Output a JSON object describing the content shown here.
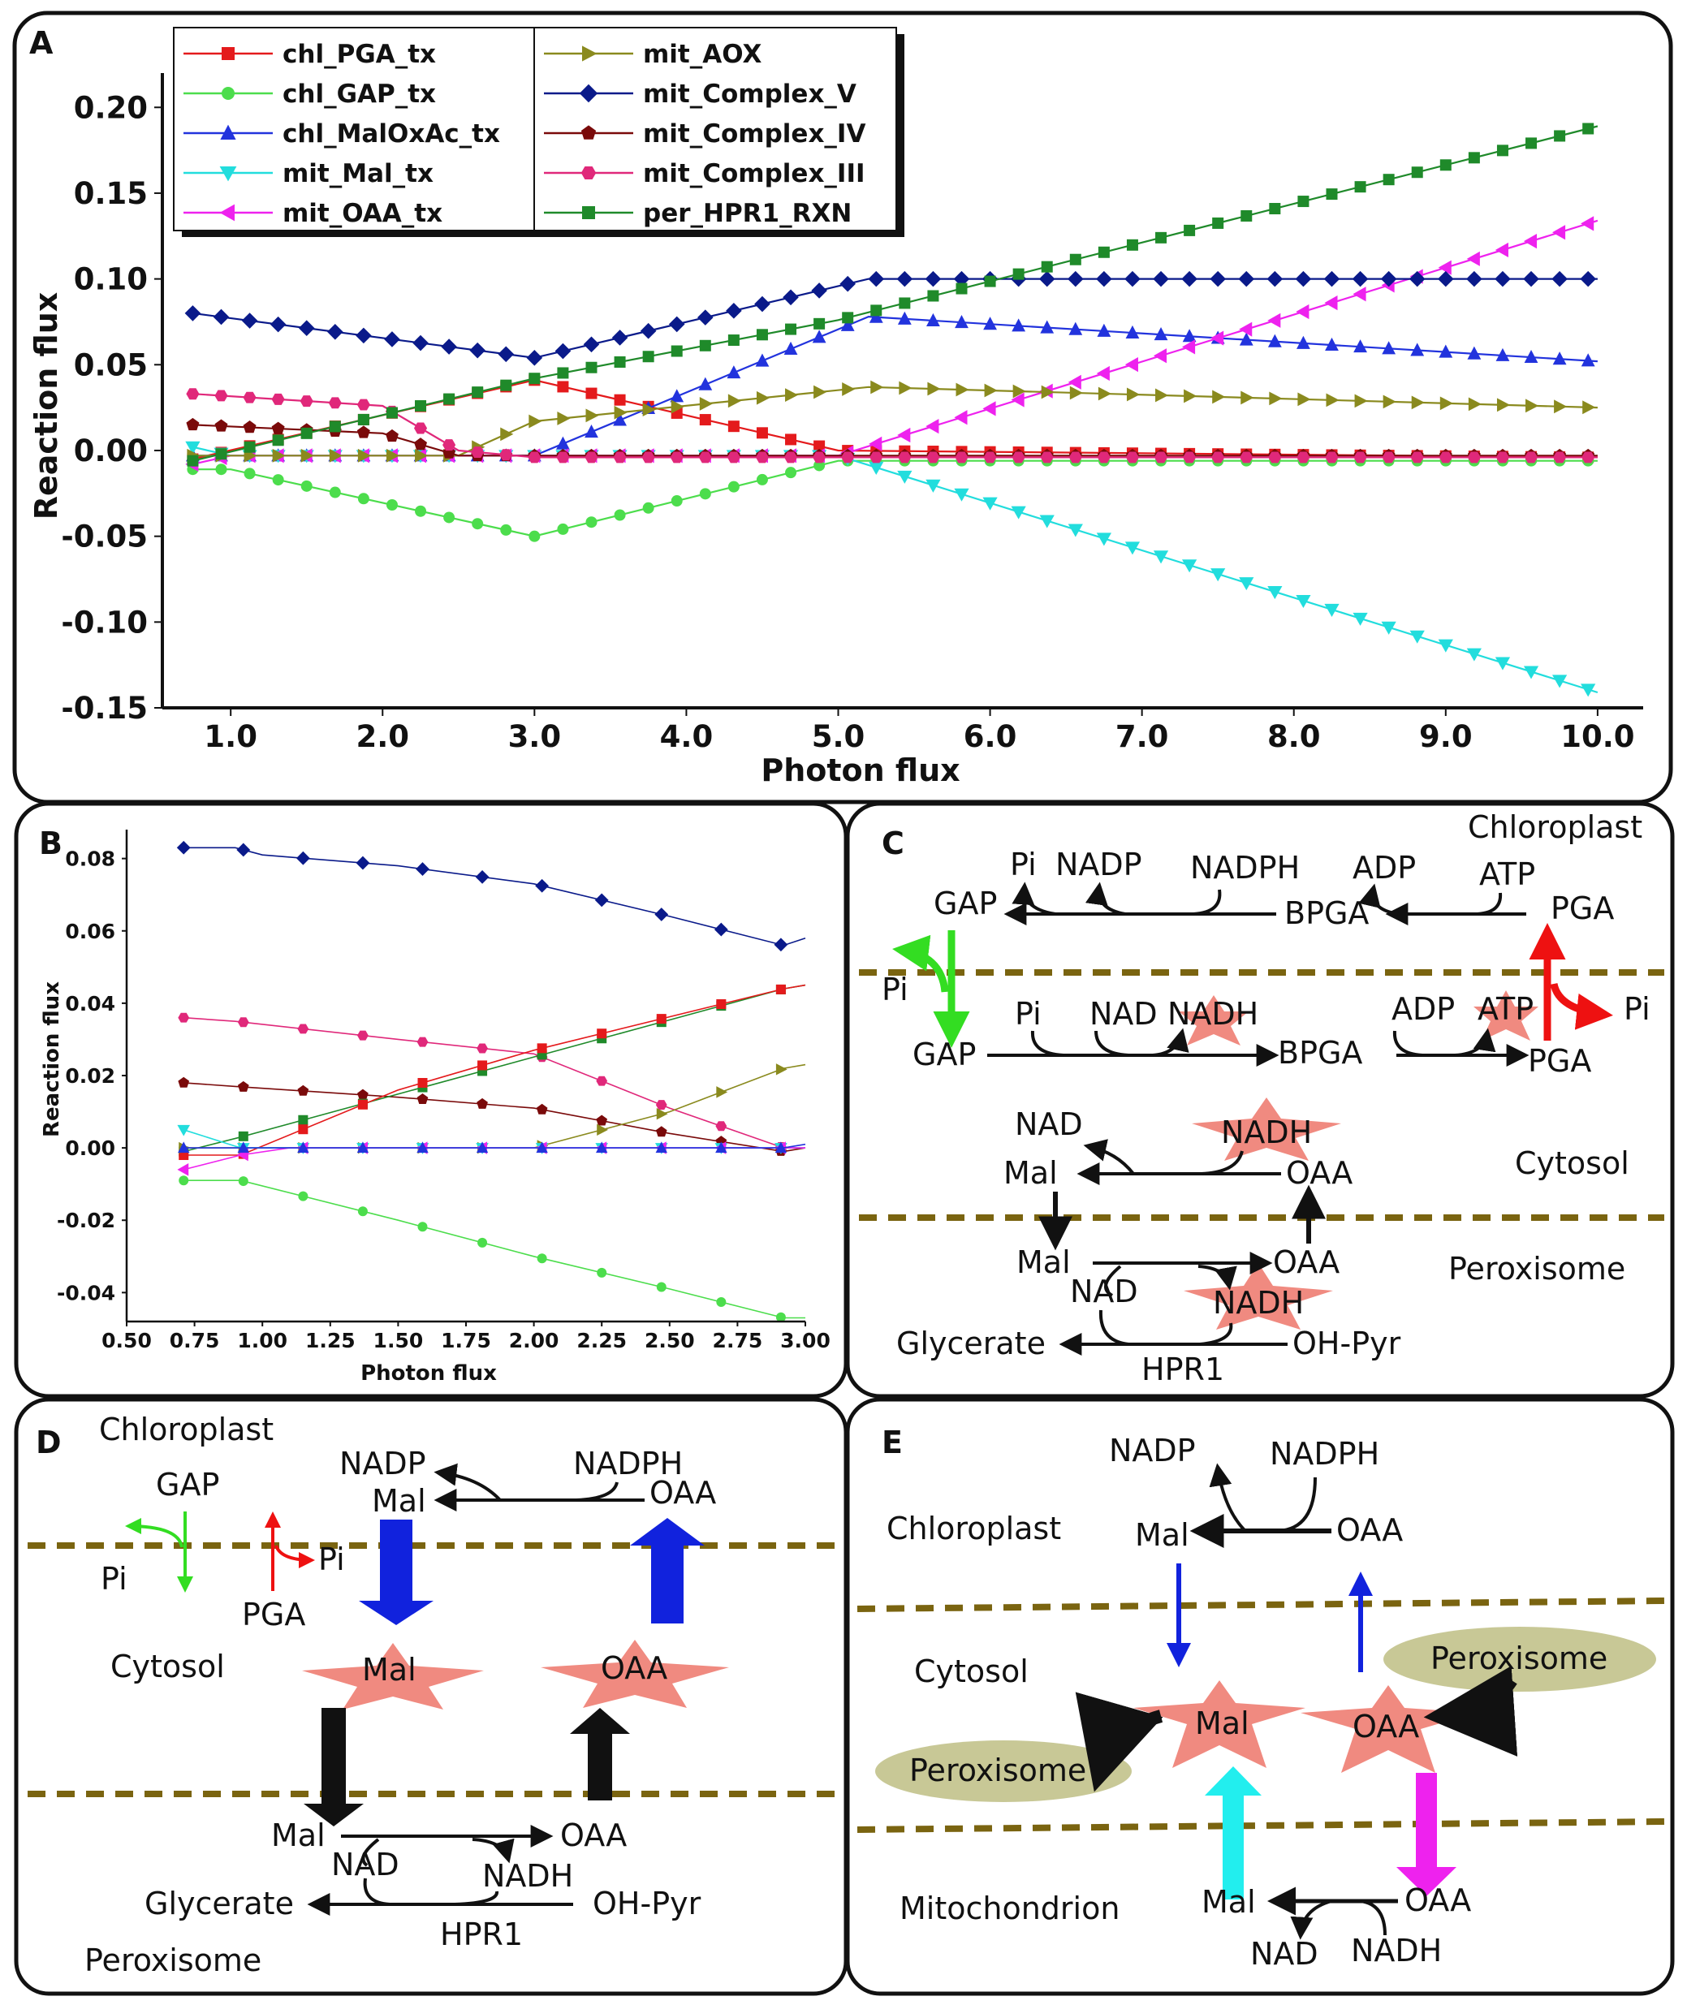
{
  "panel_labels": {
    "a": "A",
    "b": "B",
    "c": "C",
    "d": "D",
    "e": "E"
  },
  "colors": {
    "chl_PGA_tx": "#e41a1c",
    "chl_GAP_tx": "#4cdd4c",
    "chl_MalOxAc_tx": "#2233dd",
    "mit_Mal_tx": "#22dddd",
    "mit_OAA_tx": "#ee22ee",
    "mit_AOX": "#8a8a1e",
    "mit_Complex_V": "#0a1a8a",
    "mit_Complex_IV": "#7a0a0a",
    "mit_Complex_III": "#e0287a",
    "per_HPR1_RXN": "#1f8a2a",
    "membrane": "#7a6410",
    "star": "#f08a80",
    "ellipse": "#c8c896"
  },
  "chart_data": [
    {
      "panel": "A",
      "type": "line",
      "xlabel": "Photon flux",
      "ylabel": "Reaction flux",
      "xlim": [
        0.55,
        10.3
      ],
      "ylim": [
        -0.15,
        0.22
      ],
      "x_ticks": [
        "1.0",
        "2.0",
        "3.0",
        "4.0",
        "5.0",
        "6.0",
        "7.0",
        "8.0",
        "9.0",
        "10.0"
      ],
      "y_ticks": [
        "0.20",
        "0.15",
        "0.10",
        "0.05",
        "0.00",
        "-0.05",
        "-0.10",
        "-0.15"
      ],
      "legend_position": "top-left",
      "series": [
        {
          "name": "chl_PGA_tx",
          "marker": "square",
          "points": [
            [
              0.75,
              -0.005
            ],
            [
              3.0,
              0.041
            ],
            [
              5.0,
              0.0
            ],
            [
              10.0,
              -0.004
            ]
          ]
        },
        {
          "name": "chl_GAP_tx",
          "marker": "circle",
          "points": [
            [
              0.75,
              -0.011
            ],
            [
              1.0,
              -0.011
            ],
            [
              3.0,
              -0.05
            ],
            [
              5.0,
              -0.006
            ],
            [
              10.0,
              -0.006
            ]
          ]
        },
        {
          "name": "chl_MalOxAc_tx",
          "marker": "triangle-up",
          "points": [
            [
              0.75,
              -0.003
            ],
            [
              3.0,
              -0.003
            ],
            [
              5.2,
              0.078
            ],
            [
              10.0,
              0.052
            ]
          ]
        },
        {
          "name": "mit_Mal_tx",
          "marker": "triangle-down",
          "points": [
            [
              0.75,
              0.002
            ],
            [
              1.0,
              -0.003
            ],
            [
              5.0,
              -0.003
            ],
            [
              10.0,
              -0.141
            ]
          ]
        },
        {
          "name": "mit_OAA_tx",
          "marker": "triangle-left",
          "points": [
            [
              0.75,
              -0.008
            ],
            [
              1.0,
              -0.003
            ],
            [
              5.0,
              -0.003
            ],
            [
              10.0,
              0.134
            ]
          ]
        },
        {
          "name": "mit_AOX",
          "marker": "triangle-right",
          "points": [
            [
              0.75,
              -0.003
            ],
            [
              2.5,
              -0.003
            ],
            [
              3.0,
              0.017
            ],
            [
              5.2,
              0.037
            ],
            [
              10.0,
              0.025
            ]
          ]
        },
        {
          "name": "mit_Complex_V",
          "marker": "diamond",
          "points": [
            [
              0.75,
              0.08
            ],
            [
              3.0,
              0.054
            ],
            [
              5.2,
              0.1
            ],
            [
              10.0,
              0.1
            ]
          ]
        },
        {
          "name": "mit_Complex_IV",
          "marker": "pentagon",
          "points": [
            [
              0.75,
              0.015
            ],
            [
              2.0,
              0.01
            ],
            [
              2.5,
              -0.003
            ],
            [
              10.0,
              -0.003
            ]
          ]
        },
        {
          "name": "mit_Complex_III",
          "marker": "hexagon",
          "points": [
            [
              0.75,
              0.033
            ],
            [
              2.0,
              0.026
            ],
            [
              2.5,
              0.0
            ],
            [
              3.0,
              -0.004
            ],
            [
              10.0,
              -0.004
            ]
          ]
        },
        {
          "name": "per_HPR1_RXN",
          "marker": "square",
          "points": [
            [
              0.75,
              -0.006
            ],
            [
              3.0,
              0.042
            ],
            [
              5.0,
              0.076
            ],
            [
              10.0,
              0.189
            ]
          ]
        }
      ]
    },
    {
      "panel": "B",
      "type": "line",
      "xlabel": "Photon flux",
      "ylabel": "Reaction flux",
      "xlim": [
        0.5,
        3.0
      ],
      "ylim": [
        -0.048,
        0.088
      ],
      "x_ticks": [
        "0.50",
        "0.75",
        "1.00",
        "1.25",
        "1.50",
        "1.75",
        "2.00",
        "2.25",
        "2.50",
        "2.75",
        "3.00"
      ],
      "y_ticks": [
        "0.08",
        "0.06",
        "0.04",
        "0.02",
        "0.00",
        "-0.02",
        "-0.04"
      ],
      "series": [
        {
          "name": "mit_Complex_V",
          "marker": "diamond",
          "points": [
            [
              0.71,
              0.083
            ],
            [
              0.9,
              0.083
            ],
            [
              1.0,
              0.081
            ],
            [
              1.5,
              0.078
            ],
            [
              2.0,
              0.073
            ],
            [
              2.5,
              0.064
            ],
            [
              2.92,
              0.056
            ],
            [
              3.0,
              0.058
            ]
          ]
        },
        {
          "name": "mit_Complex_III",
          "marker": "hexagon",
          "points": [
            [
              0.71,
              0.036
            ],
            [
              0.9,
              0.035
            ],
            [
              1.5,
              0.03
            ],
            [
              2.0,
              0.026
            ],
            [
              2.5,
              0.011
            ],
            [
              2.92,
              0.0
            ],
            [
              3.0,
              0.0
            ]
          ]
        },
        {
          "name": "mit_Complex_IV",
          "marker": "pentagon",
          "points": [
            [
              0.71,
              0.018
            ],
            [
              0.9,
              0.017
            ],
            [
              1.5,
              0.014
            ],
            [
              2.0,
              0.011
            ],
            [
              2.5,
              0.004
            ],
            [
              2.92,
              -0.001
            ],
            [
              3.0,
              0.0
            ]
          ]
        },
        {
          "name": "per_HPR1_RXN",
          "marker": "square",
          "points": [
            [
              0.71,
              -0.001
            ],
            [
              0.92,
              0.003
            ],
            [
              2.92,
              0.044
            ],
            [
              3.0,
              0.045
            ]
          ]
        },
        {
          "name": "chl_PGA_tx",
          "marker": "square",
          "points": [
            [
              0.71,
              -0.002
            ],
            [
              0.92,
              -0.002
            ],
            [
              1.5,
              0.016
            ],
            [
              2.0,
              0.027
            ],
            [
              2.92,
              0.044
            ],
            [
              3.0,
              0.045
            ]
          ]
        },
        {
          "name": "mit_AOX",
          "marker": "triangle-right",
          "points": [
            [
              0.71,
              0.0
            ],
            [
              2.0,
              0.0
            ],
            [
              2.5,
              0.01
            ],
            [
              2.92,
              0.022
            ],
            [
              3.0,
              0.023
            ]
          ]
        },
        {
          "name": "chl_GAP_tx",
          "marker": "circle",
          "points": [
            [
              0.71,
              -0.009
            ],
            [
              0.92,
              -0.009
            ],
            [
              1.5,
              -0.02
            ],
            [
              2.0,
              -0.03
            ],
            [
              2.5,
              -0.039
            ],
            [
              2.92,
              -0.047
            ],
            [
              3.0,
              -0.047
            ]
          ]
        },
        {
          "name": "mit_Mal_tx",
          "marker": "triangle-down",
          "points": [
            [
              0.71,
              0.005
            ],
            [
              0.92,
              0.0
            ],
            [
              3.0,
              0.0
            ]
          ]
        },
        {
          "name": "mit_OAA_tx",
          "marker": "triangle-left",
          "points": [
            [
              0.71,
              -0.006
            ],
            [
              0.92,
              -0.002
            ],
            [
              1.1,
              0.0
            ],
            [
              3.0,
              0.0
            ]
          ]
        },
        {
          "name": "chl_MalOxAc_tx",
          "marker": "triangle-up",
          "points": [
            [
              0.71,
              0.0
            ],
            [
              2.92,
              0.0
            ],
            [
              3.0,
              0.001
            ]
          ]
        }
      ]
    }
  ],
  "diagram_c": {
    "chloroplast": "Chloroplast",
    "cytosol": "Cytosol",
    "peroxisome": "Peroxisome",
    "pi": "Pi",
    "nadp": "NADP",
    "nadph": "NADPH",
    "adp": "ADP",
    "atp": "ATP",
    "gap": "GAP",
    "bpga": "BPGA",
    "pga": "PGA",
    "nad": "NAD",
    "nadh": "NADH",
    "mal": "Mal",
    "oaa": "OAA",
    "glycerate": "Glycerate",
    "ohpyr": "OH-Pyr",
    "hpr1": "HPR1"
  },
  "diagram_d": {
    "chloroplast": "Chloroplast",
    "cytosol": "Cytosol",
    "peroxisome": "Peroxisome",
    "gap": "GAP",
    "pi": "Pi",
    "pga": "PGA",
    "nadp": "NADP",
    "nadph": "NADPH",
    "mal": "Mal",
    "oaa": "OAA",
    "nad": "NAD",
    "nadh": "NADH",
    "glycerate": "Glycerate",
    "ohpyr": "OH-Pyr",
    "hpr1": "HPR1"
  },
  "diagram_e": {
    "chloroplast": "Chloroplast",
    "cytosol": "Cytosol",
    "mitochondrion": "Mitochondrion",
    "peroxisome": "Peroxisome",
    "nadp": "NADP",
    "nadph": "NADPH",
    "mal": "Mal",
    "oaa": "OAA",
    "nad": "NAD",
    "nadh": "NADH"
  }
}
